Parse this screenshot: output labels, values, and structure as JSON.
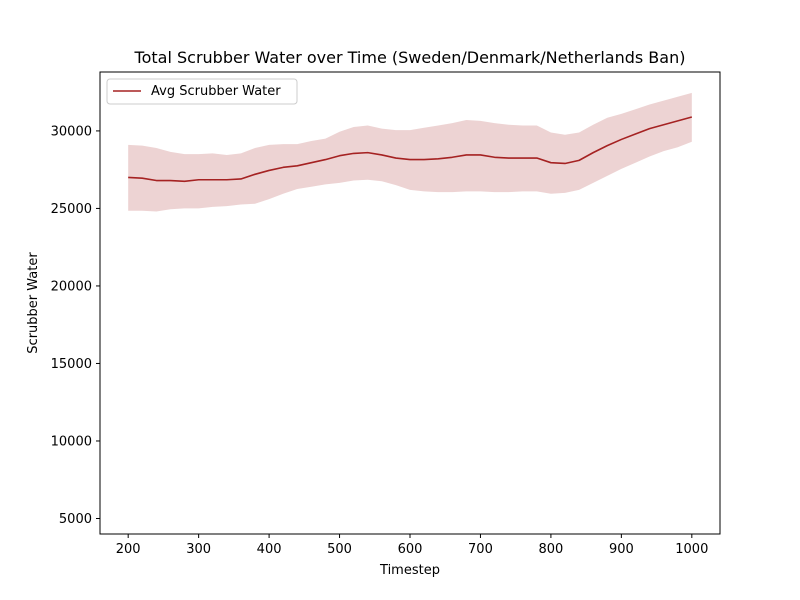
{
  "chart_data": {
    "type": "line",
    "title": "Total Scrubber Water over Time (Sweden/Denmark/Netherlands Ban)",
    "xlabel": "Timestep",
    "ylabel": "Scrubber Water",
    "xlim": [
      160,
      1040
    ],
    "ylim": [
      4000,
      33800
    ],
    "x_ticks": [
      200,
      300,
      400,
      500,
      600,
      700,
      800,
      900,
      1000
    ],
    "y_ticks": [
      5000,
      10000,
      15000,
      20000,
      25000,
      30000
    ],
    "grid": false,
    "legend_position": "upper-left",
    "colors": {
      "line": "#a52222",
      "band": "#a52222"
    },
    "series": [
      {
        "name": "Avg Scrubber Water",
        "x": [
          200,
          220,
          240,
          260,
          280,
          300,
          320,
          340,
          360,
          380,
          400,
          420,
          440,
          460,
          480,
          500,
          520,
          540,
          560,
          580,
          600,
          620,
          640,
          660,
          680,
          700,
          720,
          740,
          760,
          780,
          800,
          820,
          840,
          860,
          880,
          900,
          920,
          940,
          960,
          980,
          1000
        ],
        "mean": [
          27000,
          26950,
          26800,
          26800,
          26750,
          26850,
          26850,
          26850,
          26900,
          27200,
          27450,
          27650,
          27750,
          27950,
          28150,
          28400,
          28550,
          28600,
          28450,
          28250,
          28150,
          28150,
          28200,
          28300,
          28450,
          28450,
          28300,
          28250,
          28250,
          28250,
          27950,
          27900,
          28100,
          28600,
          29050,
          29450,
          29800,
          30150,
          30400,
          30650,
          30900
        ],
        "upper": [
          29100,
          29050,
          28900,
          28650,
          28500,
          28500,
          28550,
          28450,
          28550,
          28900,
          29100,
          29150,
          29150,
          29350,
          29500,
          29950,
          30250,
          30350,
          30150,
          30050,
          30050,
          30200,
          30350,
          30500,
          30700,
          30650,
          30500,
          30400,
          30350,
          30350,
          29900,
          29750,
          29900,
          30400,
          30850,
          31100,
          31400,
          31700,
          31950,
          32200,
          32450
        ],
        "lower": [
          24850,
          24850,
          24800,
          24950,
          25000,
          25000,
          25100,
          25150,
          25250,
          25300,
          25600,
          25950,
          26250,
          26400,
          26550,
          26650,
          26800,
          26850,
          26750,
          26500,
          26200,
          26100,
          26050,
          26050,
          26100,
          26100,
          26050,
          26050,
          26100,
          26100,
          25950,
          26000,
          26200,
          26650,
          27100,
          27550,
          27950,
          28350,
          28700,
          28950,
          29300
        ]
      }
    ]
  }
}
